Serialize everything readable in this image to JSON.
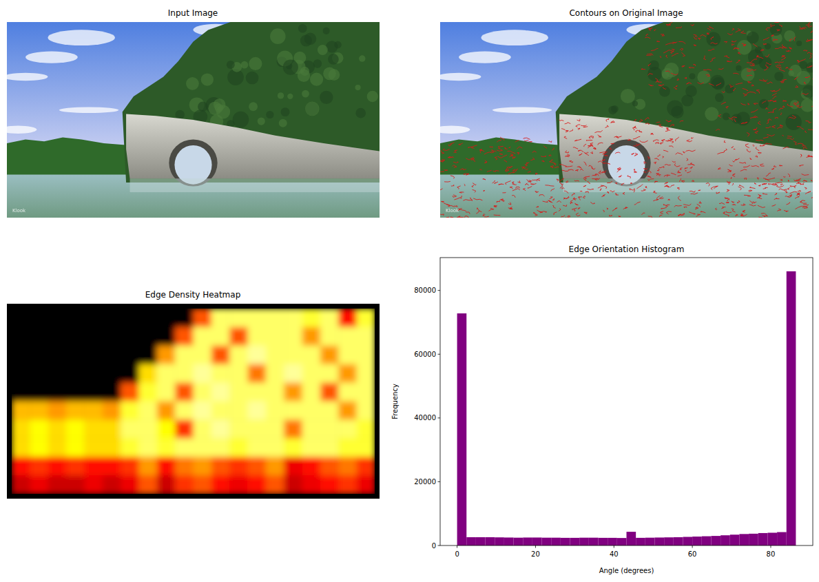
{
  "chart_data": [
    {
      "type": "image",
      "title": "Input Image",
      "watermark": "Klook"
    },
    {
      "type": "image",
      "title": "Contours on Original Image",
      "watermark": "Klook"
    },
    {
      "type": "heatmap",
      "title": "Edge Density Heatmap",
      "tick_labels": false,
      "cells": [
        [
          0,
          0,
          0,
          0,
          0,
          0,
          0,
          0,
          0,
          0,
          0.5,
          0.85,
          0.85,
          0.85,
          0.85,
          0.85,
          0.8,
          0.85,
          0.4,
          0.8
        ],
        [
          0,
          0,
          0,
          0,
          0,
          0,
          0,
          0,
          0,
          0.5,
          0.85,
          0.85,
          0.5,
          0.85,
          0.85,
          0.85,
          0.6,
          0.85,
          0.85,
          0.85
        ],
        [
          0,
          0,
          0,
          0,
          0,
          0,
          0,
          0,
          0.6,
          0.85,
          0.85,
          0.5,
          0.85,
          0.9,
          0.85,
          0.85,
          0.85,
          0.6,
          0.85,
          0.85
        ],
        [
          0,
          0,
          0,
          0,
          0,
          0,
          0,
          0.7,
          0.85,
          0.85,
          0.9,
          0.85,
          0.85,
          0.55,
          0.85,
          0.9,
          0.85,
          0.85,
          0.6,
          0.85
        ],
        [
          0,
          0,
          0,
          0,
          0,
          0,
          0.5,
          0.8,
          0.85,
          0.5,
          0.85,
          0.9,
          0.85,
          0.85,
          0.85,
          0.6,
          0.85,
          0.5,
          0.85,
          0.85
        ],
        [
          0.65,
          0.65,
          0.6,
          0.65,
          0.65,
          0.6,
          0.8,
          0.85,
          0.6,
          0.85,
          0.9,
          0.85,
          0.85,
          0.9,
          0.85,
          0.85,
          0.85,
          0.85,
          0.6,
          0.85
        ],
        [
          0.7,
          0.75,
          0.7,
          0.75,
          0.7,
          0.7,
          0.85,
          0.85,
          0.75,
          0.45,
          0.85,
          0.9,
          0.85,
          0.85,
          0.85,
          0.55,
          0.85,
          0.85,
          0.85,
          0.8
        ],
        [
          0.7,
          0.75,
          0.7,
          0.75,
          0.7,
          0.7,
          0.8,
          0.85,
          0.8,
          0.85,
          0.85,
          0.85,
          0.8,
          0.85,
          0.85,
          0.8,
          0.85,
          0.85,
          0.8,
          0.8
        ],
        [
          0.4,
          0.45,
          0.4,
          0.45,
          0.4,
          0.4,
          0.45,
          0.6,
          0.4,
          0.55,
          0.6,
          0.5,
          0.45,
          0.5,
          0.6,
          0.35,
          0.4,
          0.5,
          0.55,
          0.45
        ],
        [
          0.3,
          0.35,
          0.3,
          0.3,
          0.35,
          0.3,
          0.35,
          0.5,
          0.3,
          0.45,
          0.5,
          0.4,
          0.35,
          0.4,
          0.5,
          0.3,
          0.35,
          0.4,
          0.45,
          0.35
        ]
      ]
    },
    {
      "type": "histogram",
      "title": "Edge Orientation Histogram",
      "x_label": "Angle (degrees)",
      "y_label": "Frequency",
      "color": "#800080",
      "bins": [
        0,
        2.4,
        4.8,
        7.2,
        9.6,
        12,
        14.4,
        16.8,
        19.2,
        21.6,
        24,
        26.4,
        28.8,
        31.2,
        33.6,
        36,
        38.4,
        40.8,
        43.2,
        45.6,
        48,
        50.4,
        52.8,
        55.2,
        57.6,
        60,
        62.4,
        64.8,
        67.2,
        69.6,
        72,
        74.4,
        76.8,
        79.2,
        81.6,
        84,
        86.4
      ],
      "values": [
        72800,
        2600,
        2600,
        2600,
        2550,
        2500,
        2450,
        2500,
        2500,
        2450,
        2450,
        2400,
        2400,
        2450,
        2450,
        2400,
        2400,
        2350,
        4300,
        2400,
        2450,
        2500,
        2550,
        2600,
        2700,
        2800,
        2900,
        3000,
        3200,
        3400,
        3600,
        3700,
        3900,
        4000,
        4200,
        86000
      ],
      "xlim": [
        -4.32,
        90.72
      ],
      "ylim": [
        0,
        90300
      ],
      "xticks": [
        0,
        20,
        40,
        60,
        80
      ],
      "yticks": [
        0,
        20000,
        40000,
        60000,
        80000
      ]
    }
  ]
}
